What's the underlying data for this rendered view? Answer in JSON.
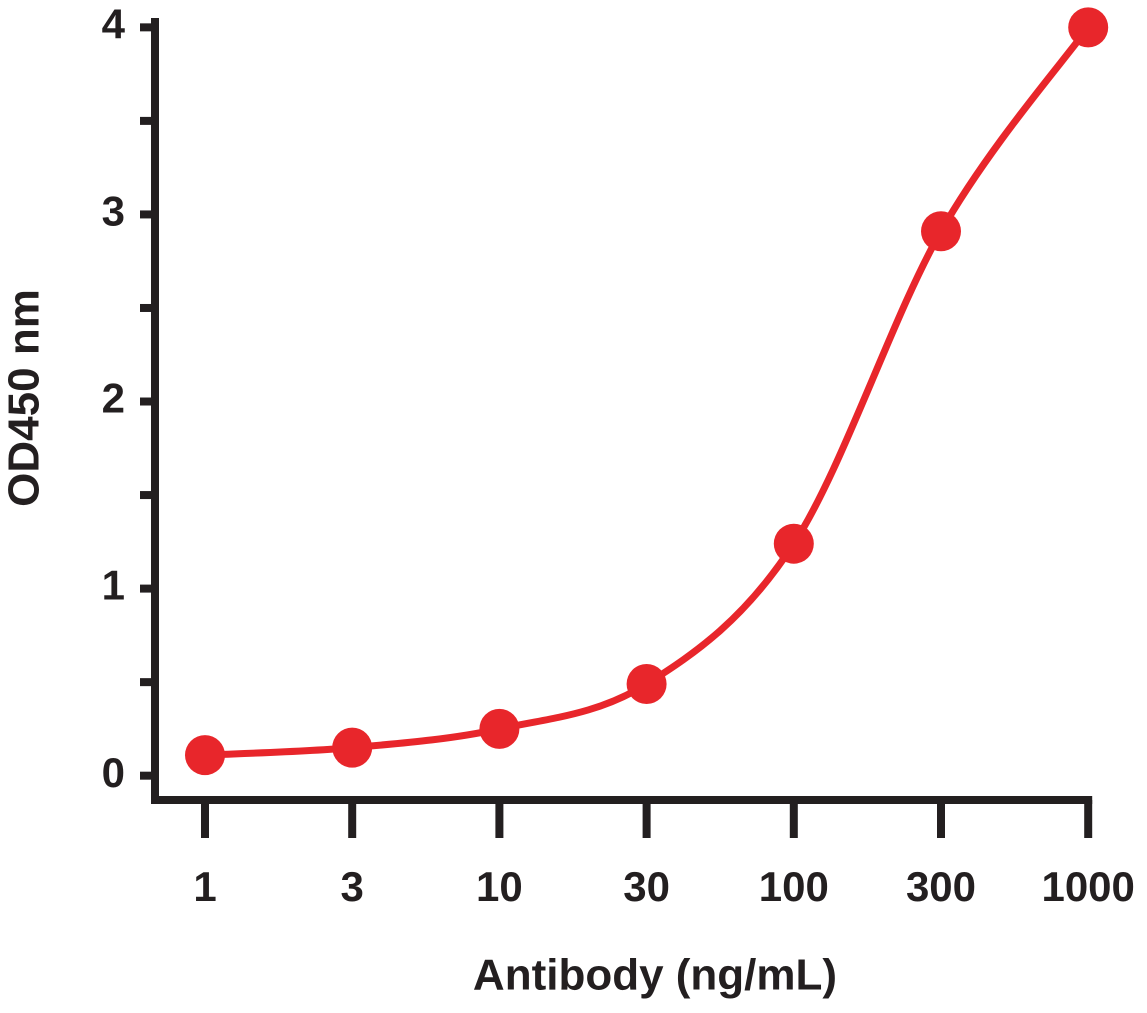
{
  "chart_data": {
    "type": "line",
    "x_label": "Antibody (ng/mL)",
    "y_label": "OD450 nm",
    "categories": [
      "1",
      "3",
      "10",
      "30",
      "100",
      "300",
      "1000"
    ],
    "series": [
      {
        "name": "Antibody",
        "color": "#e8262b",
        "values": [
          0.11,
          0.15,
          0.25,
          0.49,
          1.24,
          2.91,
          4.0
        ]
      }
    ],
    "ylim": [
      -0.13,
      4.05
    ],
    "yticks": [
      0,
      1,
      2,
      3,
      4
    ],
    "yminorticks": [
      0.5,
      1.5,
      2.5,
      3.5
    ],
    "axis_color": "#231f20"
  }
}
